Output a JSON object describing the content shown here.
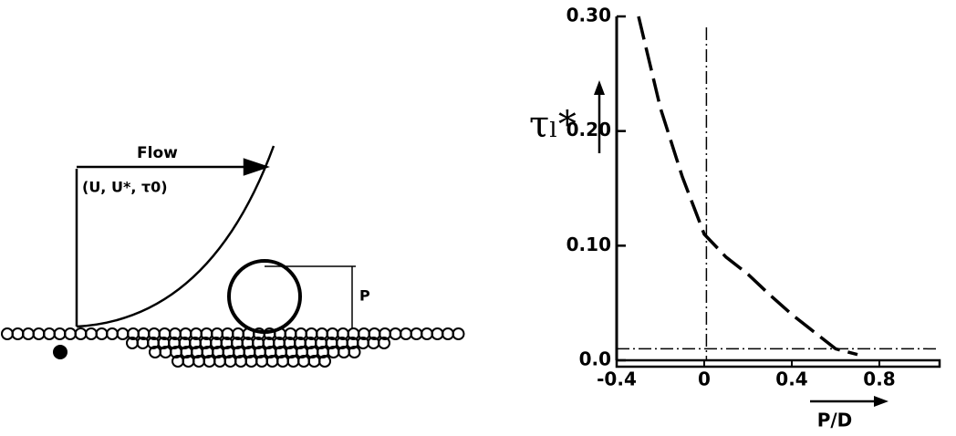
{
  "diagram": {
    "flow": "Flow",
    "variables": "(U, U*, τ0)",
    "height": "P"
  },
  "chart_data": {
    "type": "line",
    "ylabel": "τₗ*",
    "xlabel": "P/D",
    "x": [
      -0.3,
      -0.25,
      -0.2,
      -0.1,
      0,
      0.1,
      0.2,
      0.3,
      0.4,
      0.5,
      0.6,
      0.7
    ],
    "values": [
      0.3,
      0.26,
      0.22,
      0.16,
      0.11,
      0.09,
      0.075,
      0.057,
      0.04,
      0.025,
      0.01,
      0.005
    ],
    "color": "#000000",
    "reference_x": 0.01,
    "reference_y": 0.01,
    "xlim": [
      -0.4,
      1.05
    ],
    "ylim": [
      0,
      0.3
    ],
    "xticks": [
      {
        "value": -0.4,
        "label": "-0.4"
      },
      0,
      0.4,
      0.8
    ],
    "yticks": [
      {
        "value": 0,
        "label": "0.0"
      },
      {
        "value": 0.1,
        "label": "0.10"
      },
      {
        "value": 0.2,
        "label": "0.20"
      },
      {
        "value": 0.3,
        "label": "0.30"
      }
    ]
  }
}
